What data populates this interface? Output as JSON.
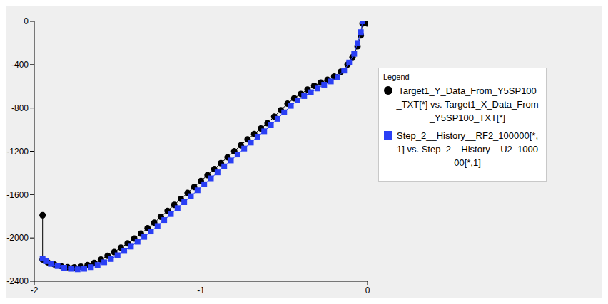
{
  "chart_data": {
    "type": "line",
    "legend": "right",
    "legend_title": "Legend",
    "xlim": [
      -2,
      0
    ],
    "xticks": [
      -2,
      -1,
      0
    ],
    "ylim": [
      -2400,
      0
    ],
    "yticks": [
      -2400,
      -2000,
      -1600,
      -1200,
      -800,
      -400,
      0
    ],
    "grid": false,
    "series": [
      {
        "name": "Target1_Y_Data_From_Y5SP100_TXT[*] vs. Target1_X_Data_From_Y5SP100_TXT[*]",
        "color": "#000000",
        "marker": "circle",
        "x": [
          -1.95,
          -1.95,
          -1.92,
          -1.88,
          -1.84,
          -1.8,
          -1.76,
          -1.72,
          -1.68,
          -1.64,
          -1.6,
          -1.56,
          -1.52,
          -1.48,
          -1.44,
          -1.4,
          -1.36,
          -1.32,
          -1.28,
          -1.24,
          -1.2,
          -1.16,
          -1.12,
          -1.08,
          -1.04,
          -1.0,
          -0.96,
          -0.92,
          -0.88,
          -0.84,
          -0.8,
          -0.76,
          -0.72,
          -0.68,
          -0.64,
          -0.6,
          -0.56,
          -0.52,
          -0.48,
          -0.44,
          -0.4,
          -0.36,
          -0.32,
          -0.28,
          -0.24,
          -0.2,
          -0.16,
          -0.12,
          -0.09,
          -0.06,
          -0.04,
          -0.03,
          0
        ],
        "values": [
          -1790,
          -2200,
          -2225,
          -2245,
          -2260,
          -2270,
          -2272,
          -2265,
          -2250,
          -2230,
          -2200,
          -2165,
          -2130,
          -2090,
          -2050,
          -2005,
          -1960,
          -1910,
          -1860,
          -1805,
          -1750,
          -1695,
          -1640,
          -1585,
          -1530,
          -1475,
          -1420,
          -1365,
          -1310,
          -1255,
          -1200,
          -1145,
          -1090,
          -1040,
          -990,
          -940,
          -880,
          -820,
          -760,
          -710,
          -670,
          -630,
          -595,
          -565,
          -540,
          -510,
          -465,
          -400,
          -330,
          -230,
          -130,
          -20,
          -20
        ]
      },
      {
        "name": "Step_2__History__RF2_100000[*,1] vs. Step_2__History__U2_100000[*,1]",
        "color": "#2a3ff5",
        "marker": "square",
        "x": [
          -1.95,
          -1.93,
          -1.9,
          -1.86,
          -1.82,
          -1.78,
          -1.74,
          -1.7,
          -1.66,
          -1.62,
          -1.58,
          -1.54,
          -1.5,
          -1.46,
          -1.42,
          -1.38,
          -1.34,
          -1.3,
          -1.26,
          -1.22,
          -1.18,
          -1.14,
          -1.1,
          -1.06,
          -1.02,
          -0.98,
          -0.94,
          -0.9,
          -0.86,
          -0.82,
          -0.78,
          -0.74,
          -0.7,
          -0.66,
          -0.62,
          -0.58,
          -0.54,
          -0.5,
          -0.46,
          -0.42,
          -0.38,
          -0.34,
          -0.3,
          -0.26,
          -0.22,
          -0.18,
          -0.14,
          -0.11,
          -0.08,
          -0.06,
          -0.04,
          -0.03
        ],
        "values": [
          -2190,
          -2215,
          -2240,
          -2260,
          -2275,
          -2285,
          -2290,
          -2285,
          -2270,
          -2250,
          -2225,
          -2195,
          -2160,
          -2120,
          -2080,
          -2035,
          -1990,
          -1940,
          -1890,
          -1835,
          -1780,
          -1725,
          -1670,
          -1615,
          -1560,
          -1505,
          -1450,
          -1395,
          -1340,
          -1285,
          -1230,
          -1175,
          -1120,
          -1065,
          -1015,
          -960,
          -900,
          -840,
          -780,
          -730,
          -690,
          -655,
          -620,
          -585,
          -555,
          -515,
          -455,
          -380,
          -300,
          -200,
          -100,
          0
        ]
      }
    ]
  }
}
